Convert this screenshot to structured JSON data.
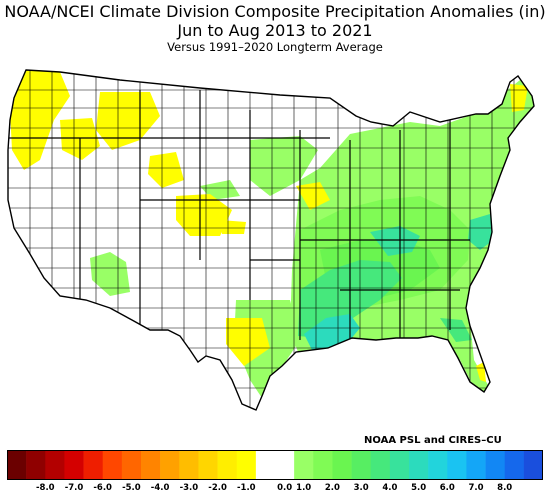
{
  "header": {
    "title_line1": "NOAA/NCEI Climate Division Composite Precipitation Anomalies (in)",
    "title_line2": "Jun to Aug 2013 to 2021",
    "subtitle": "Versus 1991–2020 Longterm Average"
  },
  "credit": "NOAA PSL and CIRES–CU",
  "colorbar": {
    "units": "in",
    "colors": [
      "#6b0000",
      "#8f0000",
      "#b30000",
      "#d40000",
      "#ef1e00",
      "#ff4700",
      "#ff6600",
      "#ff8400",
      "#ffa100",
      "#ffbd00",
      "#ffd600",
      "#ffee00",
      "#fffe00",
      "#ffffff",
      "#ffffff",
      "#99ff66",
      "#80fb55",
      "#6af550",
      "#57ee62",
      "#46e87c",
      "#38e29c",
      "#2cdbbd",
      "#22d4dc",
      "#1ac3f2",
      "#14a6f7",
      "#1287f4",
      "#1568ec",
      "#1a4fdd"
    ],
    "ticks": [
      "-8.0",
      "-7.0",
      "-6.0",
      "-5.0",
      "-4.0",
      "-3.0",
      "-2.0",
      "-1.0",
      "0.0",
      "1.0",
      "2.0",
      "3.0",
      "4.0",
      "5.0",
      "6.0",
      "7.0",
      "8.0"
    ]
  }
}
